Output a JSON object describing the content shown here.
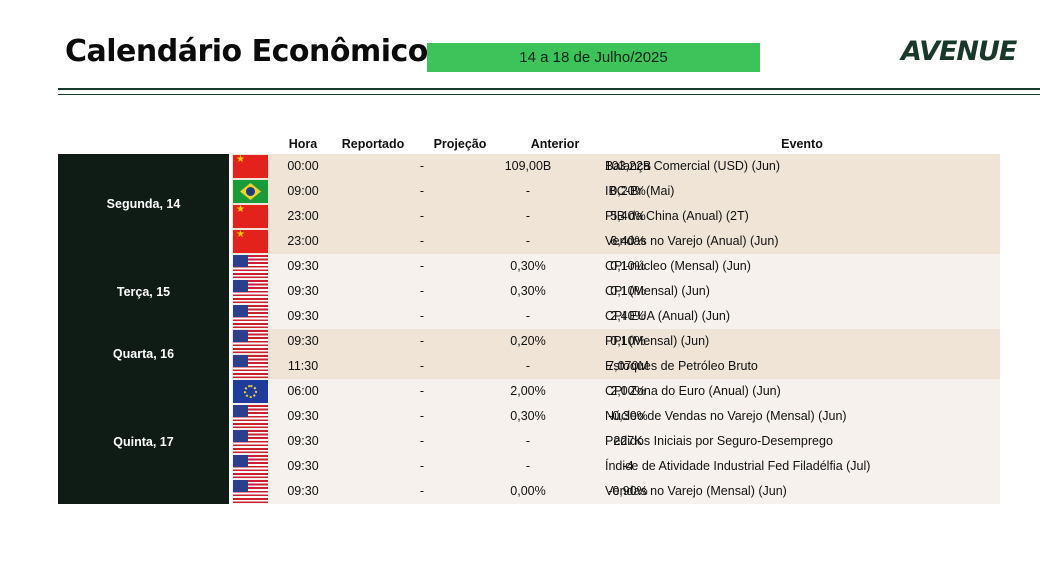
{
  "header": {
    "title": "Calendário Econômico",
    "date_range": "14 a 18 de Julho/2025",
    "logo": "AVENUE"
  },
  "columns": {
    "hora": "Hora",
    "reportado": "Reportado",
    "projecao": "Projeção",
    "anterior": "Anterior",
    "evento": "Evento"
  },
  "colors": {
    "accent_green": "#3cc35a",
    "dark": "#0f1c16",
    "row_tan": "#efe4d6",
    "row_light": "#f6f1ec"
  },
  "days": [
    {
      "label": "Segunda, 14",
      "rows": [
        {
          "flag": "china-flag-icon",
          "hora": "00:00",
          "reportado": "-",
          "projecao": "109,00B",
          "anterior": "103,22B",
          "evento": "Balança Comercial (USD) (Jun)"
        },
        {
          "flag": "brazil-flag-icon",
          "hora": "09:00",
          "reportado": "-",
          "projecao": "-",
          "anterior": "0,20%",
          "evento": "IBC-Br (Mai)"
        },
        {
          "flag": "china-flag-icon",
          "hora": "23:00",
          "reportado": "-",
          "projecao": "-",
          "anterior": "5,40%",
          "evento": "PIB da China (Anual) (2T)"
        },
        {
          "flag": "china-flag-icon",
          "hora": "23:00",
          "reportado": "-",
          "projecao": "-",
          "anterior": "6,40%",
          "evento": "Vendas no Varejo (Anual) (Jun)"
        }
      ]
    },
    {
      "label": "Terça, 15",
      "rows": [
        {
          "flag": "us-flag-icon",
          "hora": "09:30",
          "reportado": "-",
          "projecao": "0,30%",
          "anterior": "0,10%",
          "evento": "CPI-núcleo (Mensal) (Jun)"
        },
        {
          "flag": "us-flag-icon",
          "hora": "09:30",
          "reportado": "-",
          "projecao": "0,30%",
          "anterior": "0,10%",
          "evento": "CPI (Mensal) (Jun)"
        },
        {
          "flag": "us-flag-icon",
          "hora": "09:30",
          "reportado": "-",
          "projecao": "-",
          "anterior": "2,40%",
          "evento": "CPI EUA (Anual) (Jun)"
        }
      ]
    },
    {
      "label": "Quarta, 16",
      "rows": [
        {
          "flag": "us-flag-icon",
          "hora": "09:30",
          "reportado": "-",
          "projecao": "0,20%",
          "anterior": "0,10%",
          "evento": "PPI (Mensal) (Jun)"
        },
        {
          "flag": "us-flag-icon",
          "hora": "11:30",
          "reportado": "-",
          "projecao": "-",
          "anterior": "7,070M",
          "evento": "Estoques de Petróleo Bruto"
        }
      ]
    },
    {
      "label": "Quinta, 17",
      "rows": [
        {
          "flag": "eu-flag-icon",
          "hora": "06:00",
          "reportado": "-",
          "projecao": "2,00%",
          "anterior": "2,00%",
          "evento": "CPI Zona do Euro (Anual) (Jun)"
        },
        {
          "flag": "us-flag-icon",
          "hora": "09:30",
          "reportado": "-",
          "projecao": "0,30%",
          "anterior": "-0,30%",
          "evento": "Núcleo de Vendas no Varejo (Mensal) (Jun)"
        },
        {
          "flag": "us-flag-icon",
          "hora": "09:30",
          "reportado": "-",
          "projecao": "-",
          "anterior": "227K",
          "evento": "Pedidos Iniciais por Seguro-Desemprego"
        },
        {
          "flag": "us-flag-icon",
          "hora": "09:30",
          "reportado": "-",
          "projecao": "-",
          "anterior": "-4",
          "evento": "Índice de Atividade Industrial Fed Filadélfia (Jul)"
        },
        {
          "flag": "us-flag-icon",
          "hora": "09:30",
          "reportado": "-",
          "projecao": "0,00%",
          "anterior": "-0,90%",
          "evento": "Vendas no Varejo (Mensal) (Jun)"
        }
      ]
    }
  ]
}
